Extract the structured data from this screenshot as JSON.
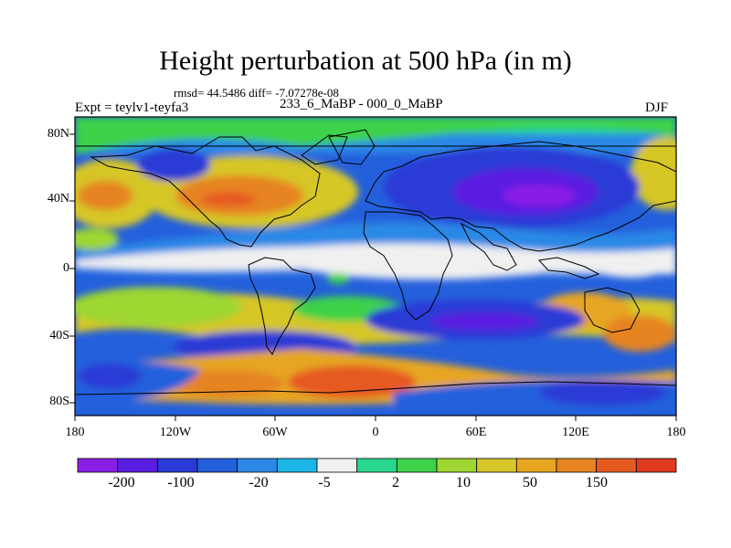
{
  "title": "Height perturbation at 500 hPa (in m)",
  "stats": "rmsd= 44.5486 diff= -7.07278e-08",
  "expt": "Expt = teylv1-teyfa3",
  "subtitle": "233_6_MaBP - 000_0_MaBP",
  "season": "DJF",
  "lat_labels": [
    "80N",
    "40N",
    "0",
    "40S",
    "80S"
  ],
  "lon_labels": [
    "180",
    "120W",
    "60W",
    "0",
    "60E",
    "120E",
    "180"
  ],
  "colorbar": {
    "labels": [
      "-200",
      "-100",
      "-20",
      "-5",
      "2",
      "10",
      "50",
      "150"
    ],
    "colors": [
      "#8a1ee6",
      "#5a1ee0",
      "#2a3ad6",
      "#2460dc",
      "#2c88e6",
      "#1cb6e6",
      "#f0f0f0",
      "#28d88c",
      "#3ed24a",
      "#9ed632",
      "#d6c628",
      "#e6a620",
      "#e68420",
      "#e65a20",
      "#e03a1e"
    ]
  }
}
